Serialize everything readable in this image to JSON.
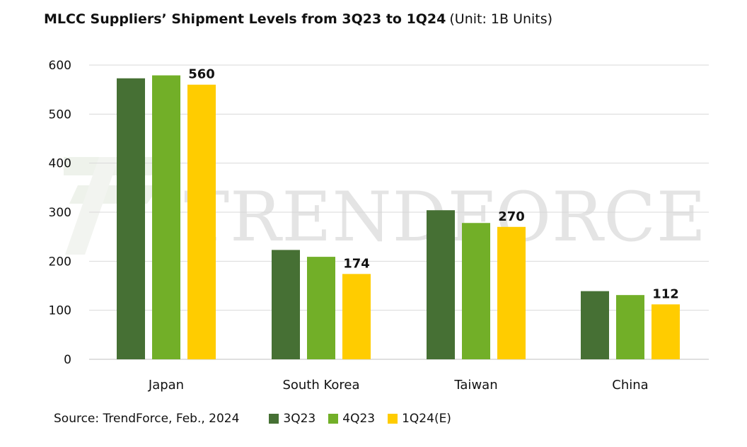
{
  "title": {
    "main": "MLCC Suppliers’ Shipment Levels from 3Q23 to 1Q24",
    "unit": "(Unit: 1B Units)"
  },
  "watermark": {
    "text": "TRENDFORCE"
  },
  "source": "Source: TrendForce, Feb., 2024",
  "colors": {
    "3Q23": "#467034",
    "4Q23": "#72AF28",
    "1Q24(E)": "#FFCC00",
    "grid": "#d9d9d9",
    "axis": "#bfbfbf",
    "watermark": "#e4e4e4"
  },
  "chart_data": {
    "type": "bar",
    "title": "MLCC Suppliers’ Shipment Levels from 3Q23 to 1Q24",
    "categories": [
      "Japan",
      "South Korea",
      "Taiwan",
      "China"
    ],
    "series": [
      {
        "name": "3Q23",
        "values": [
          573,
          223,
          304,
          139
        ]
      },
      {
        "name": "4Q23",
        "values": [
          579,
          209,
          278,
          131
        ]
      },
      {
        "name": "1Q24(E)",
        "values": [
          560,
          174,
          270,
          112
        ]
      }
    ],
    "data_labels": {
      "series": "1Q24(E)",
      "labels": [
        "560",
        "174",
        "270",
        "112"
      ]
    },
    "yticks": [
      "0",
      "100",
      "200",
      "300",
      "400",
      "500",
      "600"
    ],
    "ylim": [
      0,
      600
    ],
    "xlabel": "",
    "ylabel": "",
    "grid": true,
    "legend": "bottom"
  }
}
